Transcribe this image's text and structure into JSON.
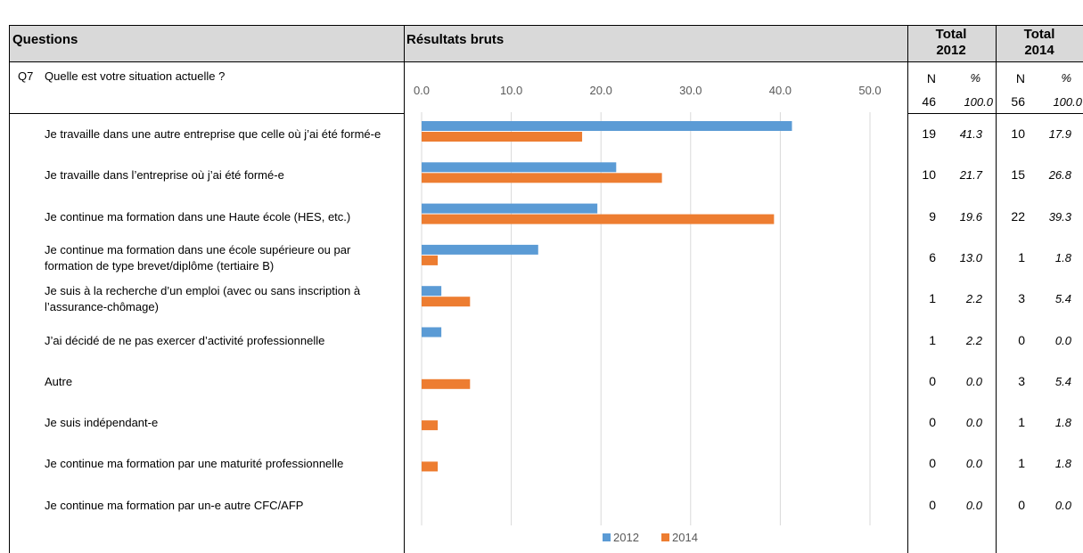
{
  "table": {
    "headers": [
      "Questions",
      "Résultats bruts",
      "Total 2012",
      "Total 2014"
    ],
    "question_id": "Q7",
    "question": "Quelle est votre situation actuelle ?",
    "col_n": "N",
    "col_pct": "%",
    "total_n_2012": "46",
    "total_pct_2012": "100.0",
    "total_n_2014": "56",
    "total_pct_2014": "100.0",
    "n2012": [
      "19",
      "10",
      "9",
      "6",
      "1",
      "1",
      "0",
      "0",
      "0",
      "0"
    ],
    "n2014": [
      "10",
      "15",
      "22",
      "1",
      "3",
      "0",
      "3",
      "1",
      "1",
      "0"
    ]
  },
  "chart_data": {
    "type": "bar",
    "orientation": "horizontal",
    "categories": [
      "Je travaille dans une autre entreprise que celle où j’ai été formé-e",
      "Je travaille dans l’entreprise où j’ai été formé-e",
      "Je continue ma formation dans une Haute école (HES, etc.)",
      "Je continue ma formation dans une école supérieure ou par formation de type brevet/diplôme (tertiaire B)",
      "Je suis à la recherche d’un emploi (avec ou sans inscription à l’assurance-chômage)",
      "J’ai décidé de ne pas exercer d’activité professionnelle",
      "Autre",
      "Je suis indépendant-e",
      "Je continue ma formation par une maturité professionnelle",
      "Je continue ma formation par un-e autre CFC/AFP"
    ],
    "series": [
      {
        "name": "2012",
        "color": "#5b9bd5",
        "values": [
          41.3,
          21.7,
          19.6,
          13.0,
          2.2,
          2.2,
          0,
          0,
          0,
          0
        ],
        "value_labels": [
          "41.3",
          "21.7",
          "19.6",
          "13.0",
          "2.2",
          "2.2",
          "0.0",
          "0.0",
          "0.0",
          "0.0"
        ]
      },
      {
        "name": "2014",
        "color": "#ed7d31",
        "values": [
          17.9,
          26.8,
          39.3,
          1.8,
          5.4,
          0,
          5.4,
          1.8,
          1.8,
          0
        ],
        "value_labels": [
          "17.9",
          "26.8",
          "39.3",
          "1.8",
          "5.4",
          "0.0",
          "5.4",
          "1.8",
          "1.8",
          "0.0"
        ]
      }
    ],
    "xlim": [
      0,
      50
    ],
    "xticks": [
      {
        "value": 0,
        "label": "0.0"
      },
      {
        "value": 10,
        "label": "10.0"
      },
      {
        "value": 20,
        "label": "20.0"
      },
      {
        "value": 30,
        "label": "30.0"
      },
      {
        "value": 40,
        "label": "40.0"
      },
      {
        "value": 50,
        "label": "50.0"
      }
    ],
    "grid": true,
    "legend": "bottom"
  }
}
